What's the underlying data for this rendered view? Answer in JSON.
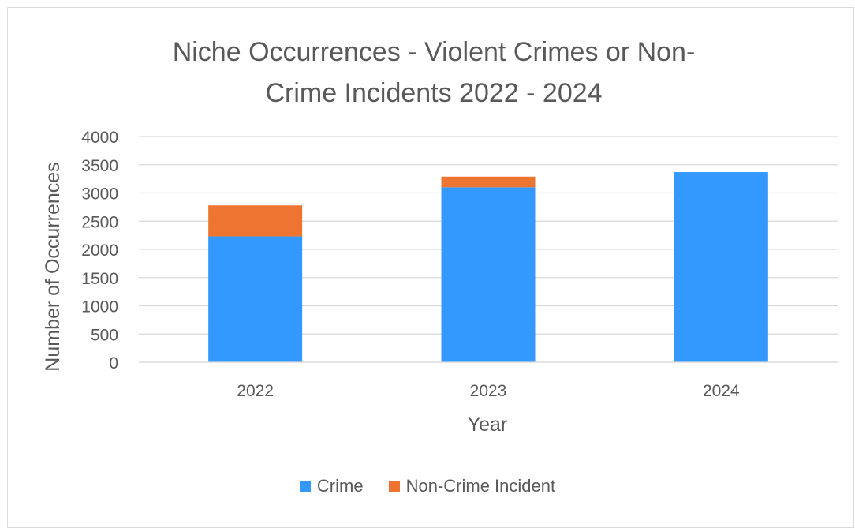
{
  "chart_data": {
    "type": "bar",
    "stacked": true,
    "title_lines": [
      "Niche Occurrences - Violent Crimes or Non-",
      "Crime Incidents 2022 - 2024"
    ],
    "xlabel": "Year",
    "ylabel": "Number of Occurrences",
    "categories": [
      "2022",
      "2023",
      "2024"
    ],
    "y_ticks": [
      "0",
      "500",
      "1000",
      "1500",
      "2000",
      "2500",
      "3000",
      "3500",
      "4000"
    ],
    "ylim": [
      0,
      4000
    ],
    "grid": true,
    "legend_position": "bottom",
    "series": [
      {
        "name": "Crime",
        "color": "#3399ff",
        "values": [
          2230,
          3100,
          3370
        ]
      },
      {
        "name": "Non-Crime Incident",
        "color": "#ed7431",
        "values": [
          550,
          190,
          0
        ]
      }
    ]
  }
}
